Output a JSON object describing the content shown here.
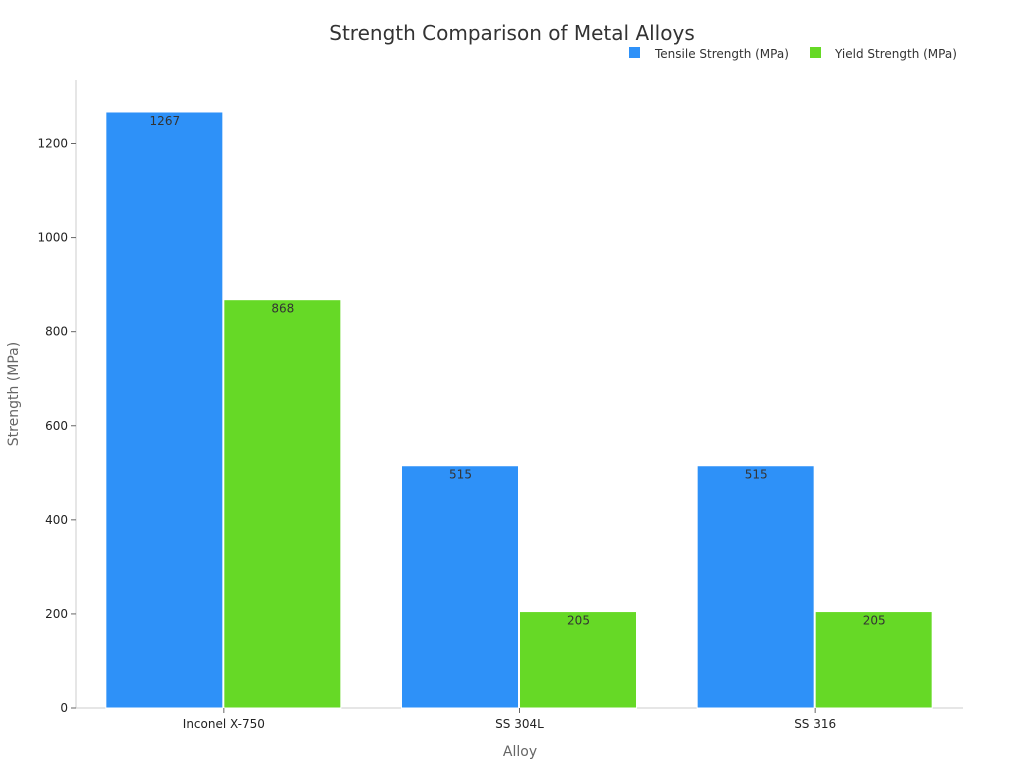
{
  "chart_data": {
    "type": "bar",
    "title": "Strength Comparison of Metal Alloys",
    "xlabel": "Alloy",
    "ylabel": "Strength (MPa)",
    "categories": [
      "Inconel X-750",
      "SS 304L",
      "SS 316"
    ],
    "series": [
      {
        "name": "Tensile Strength (MPa)",
        "values": [
          1267,
          515,
          515
        ],
        "color": "#2e91f8"
      },
      {
        "name": "Yield Strength (MPa)",
        "values": [
          868,
          205,
          205
        ],
        "color": "#66d926"
      }
    ],
    "ylim": [
      0,
      1335
    ],
    "yticks": [
      0,
      200,
      400,
      600,
      800,
      1000,
      1200
    ],
    "grid": false,
    "legend_position": "top-right",
    "data_labels": true
  }
}
